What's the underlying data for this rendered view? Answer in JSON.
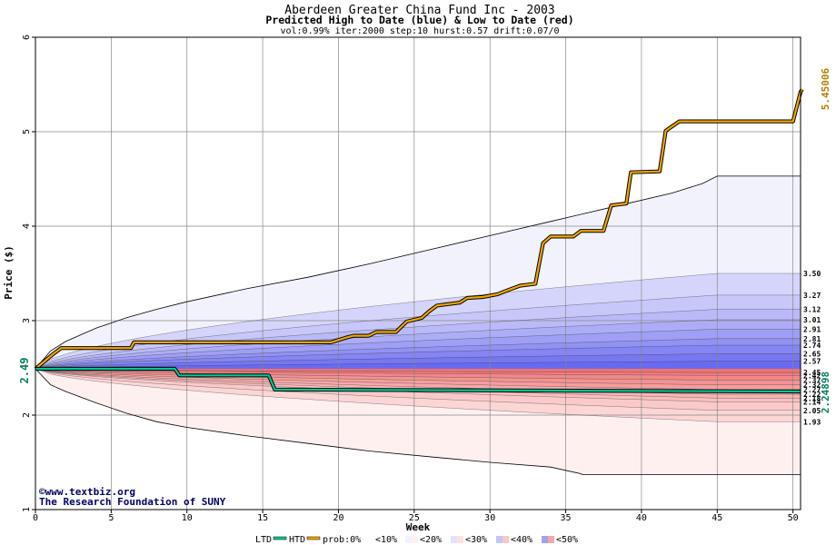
{
  "chart_data": {
    "type": "area",
    "title": "Aberdeen Greater China Fund Inc - 2003",
    "subtitle": "Predicted High to Date (blue) &  Low to Date (red)",
    "params": "vol:0.99% iter:2000 step:10 hurst:0.57 drift:0.07/0",
    "xlabel": "Week",
    "ylabel": "Price ($)",
    "xlim": [
      0,
      50.5
    ],
    "ylim": [
      1,
      6
    ],
    "x_ticks": [
      "0",
      "5",
      "10",
      "15",
      "20",
      "25",
      "30",
      "35",
      "40",
      "45",
      "50"
    ],
    "y_ticks": [
      "1",
      "2",
      "3",
      "4",
      "5",
      "6"
    ],
    "start_price": "2.49",
    "htd_final": "5.45006",
    "ltd_final": "2.24898",
    "right_levels": [
      "3.50",
      "3.27",
      "3.12",
      "3.01",
      "2.91",
      "2.81",
      "2.74",
      "2.65",
      "2.57",
      "2.45",
      "2.42",
      "2.37",
      "2.32",
      "2.27",
      "2.22",
      "2.18",
      "2.14",
      "2.05",
      "1.93"
    ],
    "upper_band": {
      "x": [
        0,
        1,
        2,
        4,
        6,
        8,
        10,
        14,
        18,
        22,
        26,
        30,
        34,
        38,
        42,
        44,
        45,
        50.5
      ],
      "values": [
        2.49,
        2.68,
        2.78,
        2.92,
        3.03,
        3.12,
        3.2,
        3.34,
        3.46,
        3.6,
        3.75,
        3.9,
        4.05,
        4.2,
        4.35,
        4.45,
        4.53,
        4.53
      ]
    },
    "lower_band": {
      "x": [
        0,
        1,
        2,
        4,
        6,
        8,
        10,
        14,
        18,
        22,
        26,
        30,
        34,
        36,
        36.1,
        50.5
      ],
      "values": [
        2.49,
        2.32,
        2.25,
        2.13,
        2.02,
        1.93,
        1.87,
        1.78,
        1.7,
        1.62,
        1.56,
        1.5,
        1.45,
        1.38,
        1.37,
        1.37
      ]
    },
    "upper_levels": [
      3.5,
      3.27,
      3.12,
      3.01,
      2.91,
      2.81,
      2.74,
      2.65,
      2.57
    ],
    "lower_levels": [
      2.45,
      2.42,
      2.37,
      2.32,
      2.27,
      2.22,
      2.18,
      2.14,
      2.05,
      1.93
    ],
    "series": [
      {
        "name": "HTD",
        "color": "#f5a800",
        "x": [
          0,
          1.2,
          1.7,
          6.3,
          6.5,
          19.5,
          20.5,
          21.0,
          22.0,
          22.5,
          23.8,
          24.5,
          25.5,
          26.0,
          26.5,
          27.0,
          28.0,
          28.5,
          29.5,
          30.5,
          31.3,
          32.0,
          33.0,
          33.5,
          34.0,
          35.5,
          36.0,
          37.5,
          38.0,
          39.0,
          39.3,
          41.2,
          41.6,
          42.5,
          50.0,
          50.5,
          50.6
        ],
        "values": [
          2.49,
          2.65,
          2.71,
          2.71,
          2.77,
          2.77,
          2.82,
          2.84,
          2.84,
          2.88,
          2.88,
          2.99,
          3.03,
          3.1,
          3.16,
          3.17,
          3.19,
          3.24,
          3.25,
          3.28,
          3.33,
          3.37,
          3.39,
          3.82,
          3.89,
          3.89,
          3.95,
          3.95,
          4.22,
          4.24,
          4.57,
          4.58,
          5.01,
          5.11,
          5.11,
          5.42,
          5.45
        ]
      },
      {
        "name": "LTD",
        "color": "#00c896",
        "x": [
          0,
          9.2,
          9.5,
          15.4,
          15.8,
          50.5
        ],
        "values": [
          2.49,
          2.49,
          2.42,
          2.42,
          2.27,
          2.25
        ]
      }
    ],
    "legend": {
      "ltd": "LTD",
      "htd": "HTD",
      "prob": "prob:0%",
      "buckets": [
        "<10%",
        "<20%",
        "<30%",
        "<40%",
        "<50%"
      ]
    },
    "credits": [
      "©www.textbiz.org",
      "The Research Foundation of SUNY"
    ]
  },
  "colors": {
    "htd": "#f5a800",
    "ltd": "#00c896",
    "upper_outer": "#f2f2fd",
    "lower_outer": "#fff0f0",
    "blue_dark": "#6e6ef5",
    "red_dark": "#ee8888",
    "grid": "#888888",
    "title": "#000000",
    "label_orange": "#b08000",
    "label_green": "#008060"
  }
}
